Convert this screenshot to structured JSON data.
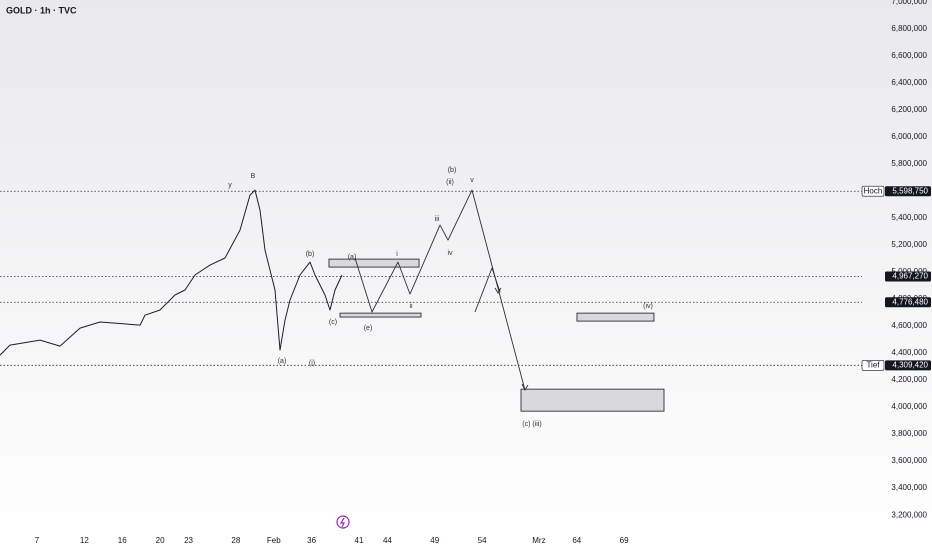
{
  "chart_data": {
    "type": "line",
    "title": "GOLD · 1h · TVC",
    "xlim": [
      3.09,
      94.12
    ],
    "ylim": [
      3090000,
      7000000
    ],
    "xticks": [
      7,
      12,
      16,
      20,
      23,
      28,
      {
        "value": 32,
        "label": "Feb"
      },
      36,
      41,
      44,
      49,
      54,
      {
        "value": 60,
        "label": "Mrz"
      },
      64,
      69
    ],
    "yticks": [
      {
        "value": 3200000,
        "label": "3,200,000"
      },
      {
        "value": 3400000,
        "label": "3,400,000"
      },
      {
        "value": 3600000,
        "label": "3,600,000"
      },
      {
        "value": 3800000,
        "label": "3,800,000"
      },
      {
        "value": 4000000,
        "label": "4,000,000"
      },
      {
        "value": 4200000,
        "label": "4,200,000"
      },
      {
        "value": 4400000,
        "label": "4,400,000"
      },
      {
        "value": 4600000,
        "label": "4,600,000"
      },
      {
        "value": 4800000,
        "label": "4,800,000"
      },
      {
        "value": 5000000,
        "label": "5,000,000"
      },
      {
        "value": 5200000,
        "label": "5,200,000"
      },
      {
        "value": 5400000,
        "label": "5,400,000"
      },
      {
        "value": 5600000,
        "label": "5,600,000"
      },
      {
        "value": 5800000,
        "label": "5,800,000"
      },
      {
        "value": 6000000,
        "label": "6,000,000"
      },
      {
        "value": 6200000,
        "label": "6,200,000"
      },
      {
        "value": 6400000,
        "label": "6,400,000"
      },
      {
        "value": 6600000,
        "label": "6,600,000"
      },
      {
        "value": 6800000,
        "label": "6,800,000"
      },
      {
        "value": 7000000,
        "label": "7,000,000"
      }
    ],
    "series": [
      {
        "color": "#1b1f2b",
        "x": [
          3.09,
          4.15,
          7.32,
          9.43,
          11.54,
          13.65,
          17.88,
          18.4,
          19.99,
          21.57,
          22.63,
          23.68,
          25.27,
          26.85,
          28.44,
          29.49,
          30.02,
          30.55,
          31.08,
          31.6,
          32.13,
          32.66,
          33.19,
          33.72,
          34.77,
          35.83,
          36.36,
          36.88,
          37.41,
          37.94,
          38.47,
          39.21
        ],
        "values": [
          4385000,
          4459000,
          4496000,
          4452000,
          4585000,
          4630000,
          4607000,
          4681000,
          4719000,
          4830000,
          4867000,
          4978000,
          5052000,
          5104000,
          5311000,
          5570000,
          5607000,
          5459000,
          5163000,
          5015000,
          4867000,
          4422000,
          4644000,
          4793000,
          4978000,
          5074000,
          4978000,
          4904000,
          4830000,
          4719000,
          4867000,
          4978000
        ]
      },
      {
        "color": "#2a2e39",
        "x": [
          40.58,
          42.37,
          45.12,
          46.39,
          49.56,
          50.4,
          52.93,
          58.53
        ],
        "values": [
          5104000,
          4704000,
          5074000,
          4837000,
          5348000,
          5237000,
          5607000,
          4126000
        ]
      },
      {
        "color": "#2a2e39",
        "x": [
          53.25,
          55.05,
          55.89
        ],
        "values": [
          4704000,
          5030000,
          4852000
        ]
      }
    ],
    "zones": [
      {
        "x": [
          37.83,
          47.34
        ],
        "range": [
          5037000,
          5096000
        ]
      },
      {
        "x": [
          39.0,
          47.55
        ],
        "range": [
          4667000,
          4696000
        ]
      },
      {
        "x": [
          64.02,
          72.15
        ],
        "range": [
          4637000,
          4696000
        ]
      },
      {
        "x": [
          58.11,
          73.21
        ],
        "range": [
          3970000,
          4133000
        ]
      }
    ],
    "levels": [
      {
        "label": "Hoch",
        "value": 5598750,
        "value_label": "5,598,750"
      },
      {
        "value": 4967270,
        "value_label": "4,967,270"
      },
      {
        "value": 4776480,
        "value_label": "4,776,480"
      },
      {
        "label": "Tief",
        "value": 4309420,
        "value_label": "4,309,420"
      }
    ],
    "wave_labels": [
      "y",
      "B",
      "(b)",
      "(a)",
      "i",
      "(c)",
      "(e)",
      "ii",
      "iii",
      "iv",
      "v",
      "(b)",
      "(ii)",
      "(a)",
      "(i)",
      "(c) (iii)",
      "(iv)"
    ]
  }
}
